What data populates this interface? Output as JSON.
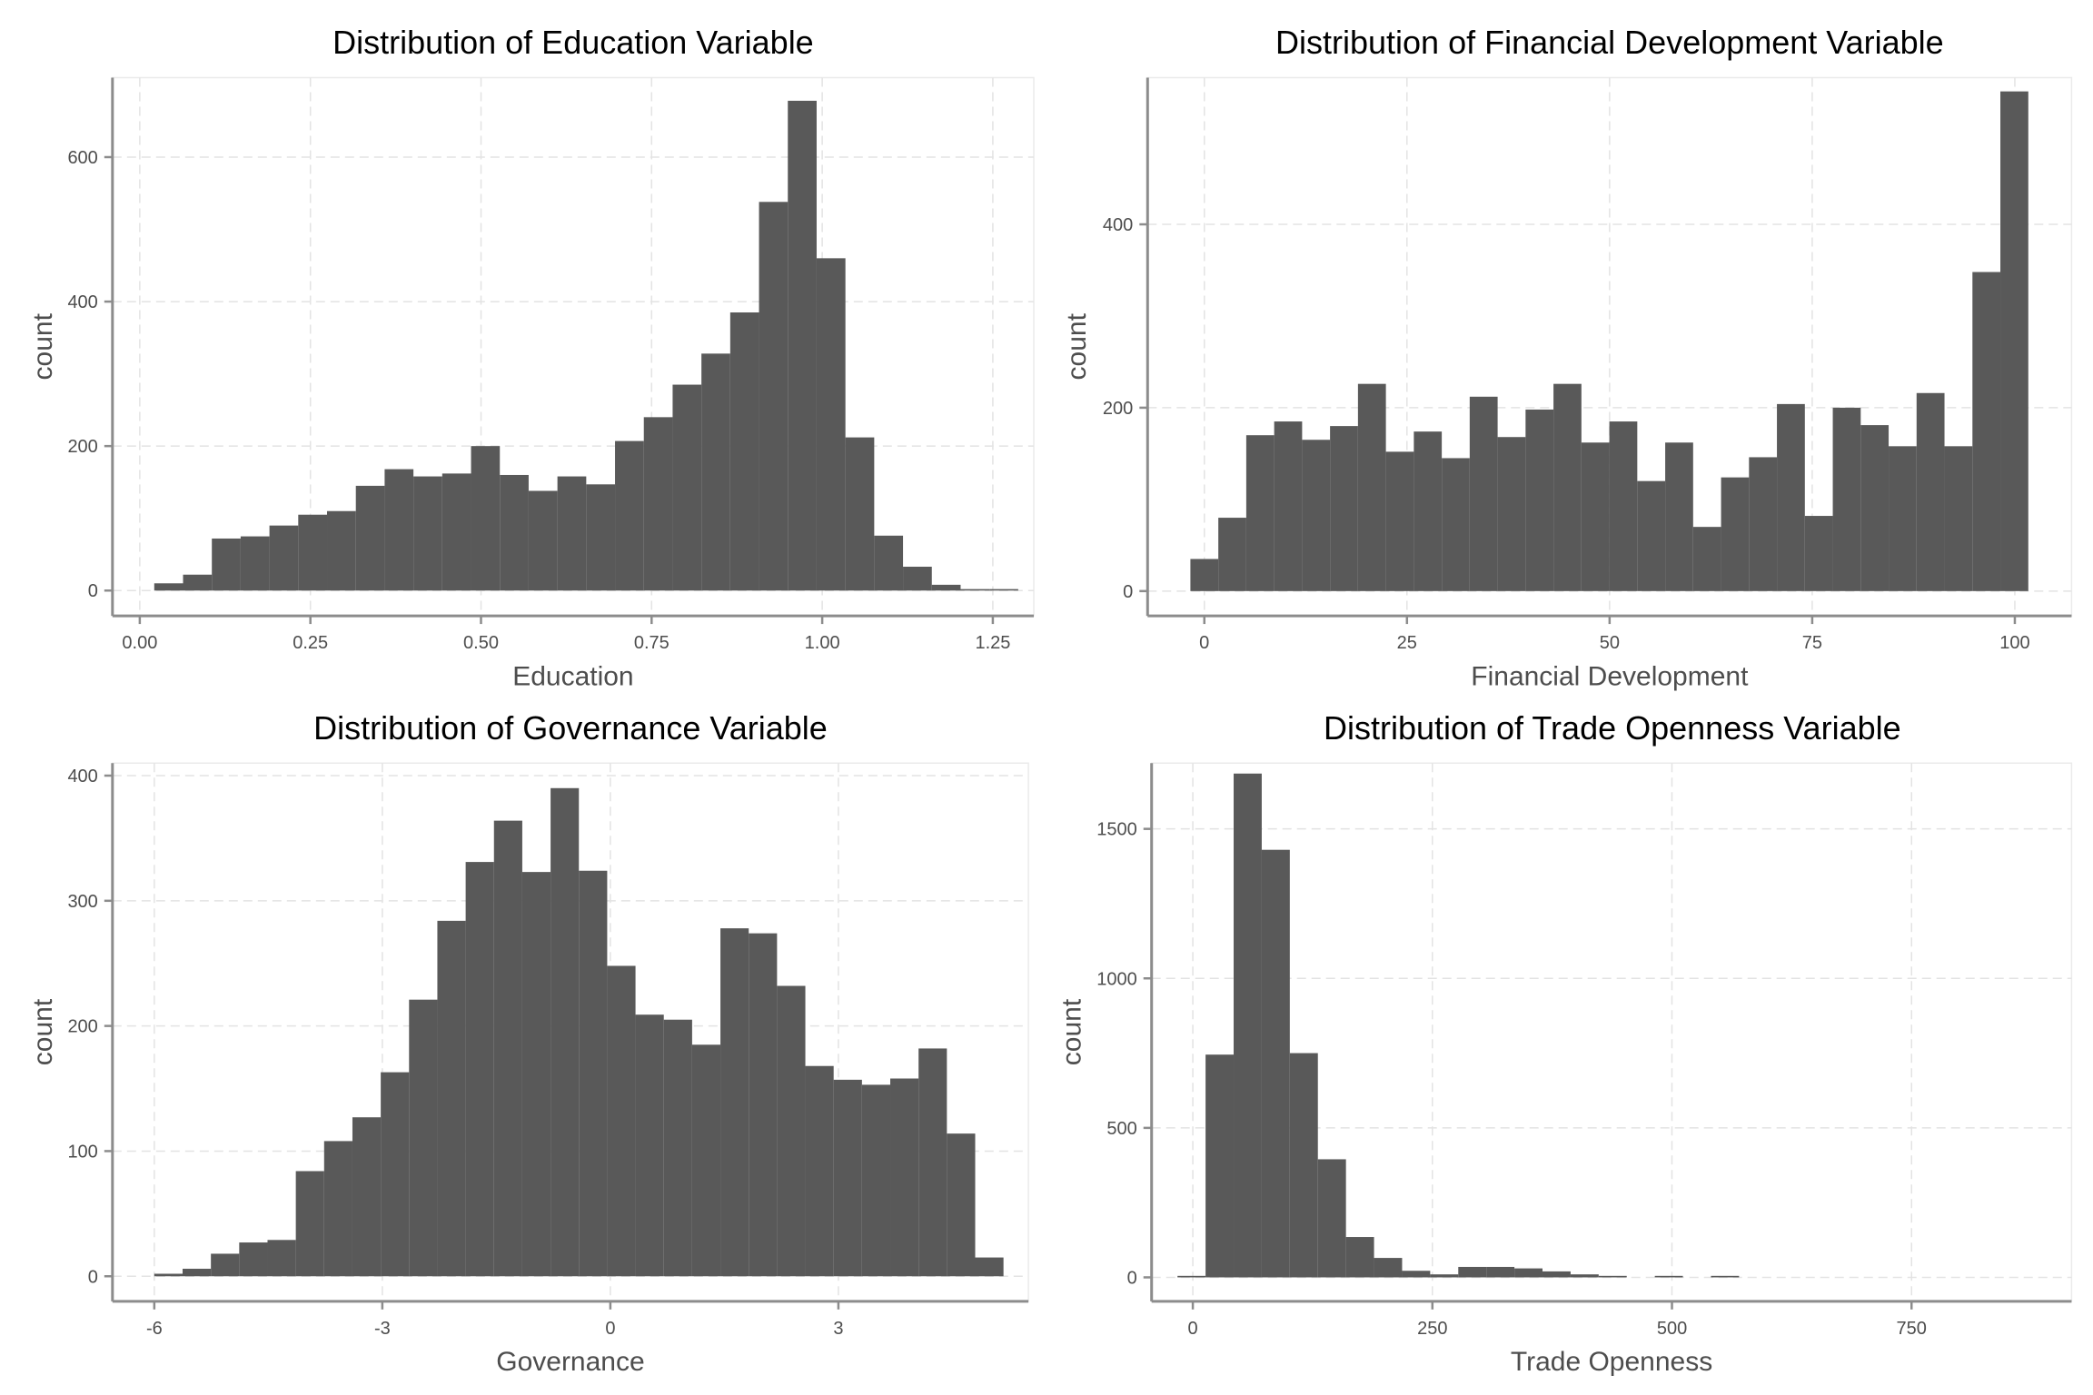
{
  "chart_data": [
    {
      "type": "bar",
      "title": "Distribution of Education Variable",
      "xlabel": "Education",
      "ylabel": "count",
      "xlim": [
        -0.04,
        1.31
      ],
      "ylim": [
        -35,
        710
      ],
      "xticks": [
        0,
        0.25,
        0.5,
        0.75,
        1.0,
        1.25
      ],
      "xtick_labels": [
        "0.00",
        "0.25",
        "0.50",
        "0.75",
        "1.00",
        "1.25"
      ],
      "yticks": [
        0,
        200,
        400,
        600
      ],
      "ytick_labels": [
        "0",
        "200",
        "400",
        "600"
      ],
      "bins": {
        "start": 0.0212,
        "width": 0.0422,
        "counts": [
          10,
          22,
          72,
          75,
          90,
          105,
          110,
          145,
          168,
          158,
          162,
          200,
          160,
          138,
          158,
          147,
          207,
          240,
          285,
          328,
          385,
          538,
          678,
          460,
          212,
          76,
          33,
          8,
          2,
          2
        ]
      },
      "grid": true,
      "legend": "none"
    },
    {
      "type": "bar",
      "title": "Distribution of Financial Development Variable",
      "xlabel": "Financial Development",
      "ylabel": "count",
      "xlim": [
        -7,
        107
      ],
      "ylim": [
        -27,
        560
      ],
      "xticks": [
        0,
        25,
        50,
        75,
        100
      ],
      "xtick_labels": [
        "0",
        "25",
        "50",
        "75",
        "100"
      ],
      "yticks": [
        0,
        200,
        400
      ],
      "ytick_labels": [
        "0",
        "200",
        "400"
      ],
      "bins": {
        "start": -1.72,
        "width": 3.446,
        "counts": [
          35,
          80,
          170,
          185,
          165,
          180,
          226,
          152,
          174,
          145,
          212,
          168,
          198,
          226,
          162,
          185,
          120,
          162,
          70,
          124,
          146,
          204,
          82,
          200,
          181,
          158,
          216,
          158,
          348,
          545
        ]
      },
      "grid": true,
      "legend": "none"
    },
    {
      "type": "bar",
      "title": "Distribution of Governance Variable",
      "xlabel": "Governance",
      "ylabel": "count",
      "xlim": [
        -6.55,
        5.5
      ],
      "ylim": [
        -20,
        410
      ],
      "xticks": [
        -6,
        -3,
        0,
        3
      ],
      "xtick_labels": [
        "-6",
        "-3",
        "0",
        "3"
      ],
      "yticks": [
        0,
        100,
        200,
        300,
        400
      ],
      "ytick_labels": [
        "0",
        "100",
        "200",
        "300",
        "400"
      ],
      "bins": {
        "start": -6.0,
        "width": 0.3724,
        "counts": [
          2,
          6,
          18,
          27,
          29,
          84,
          108,
          127,
          163,
          221,
          284,
          331,
          364,
          323,
          390,
          324,
          248,
          209,
          205,
          185,
          278,
          274,
          232,
          168,
          157,
          153,
          158,
          182,
          114,
          15
        ]
      },
      "grid": true,
      "legend": "none"
    },
    {
      "type": "bar",
      "title": "Distribution of Trade Openness Variable",
      "xlabel": "Trade Openness",
      "ylabel": "count",
      "xlim": [
        -43,
        917
      ],
      "ylim": [
        -80,
        1720
      ],
      "xticks": [
        0,
        250,
        500,
        750
      ],
      "xtick_labels": [
        "0",
        "250",
        "500",
        "750"
      ],
      "yticks": [
        0,
        500,
        1000,
        1500
      ],
      "ytick_labels": [
        "0",
        "500",
        "1000",
        "1500"
      ],
      "bins": {
        "start": -16,
        "width": 29.3,
        "counts": [
          5,
          745,
          1685,
          1430,
          750,
          395,
          135,
          65,
          22,
          10,
          35,
          35,
          30,
          20,
          10,
          5,
          0,
          5,
          0,
          5
        ]
      },
      "grid": true,
      "legend": "none"
    }
  ]
}
